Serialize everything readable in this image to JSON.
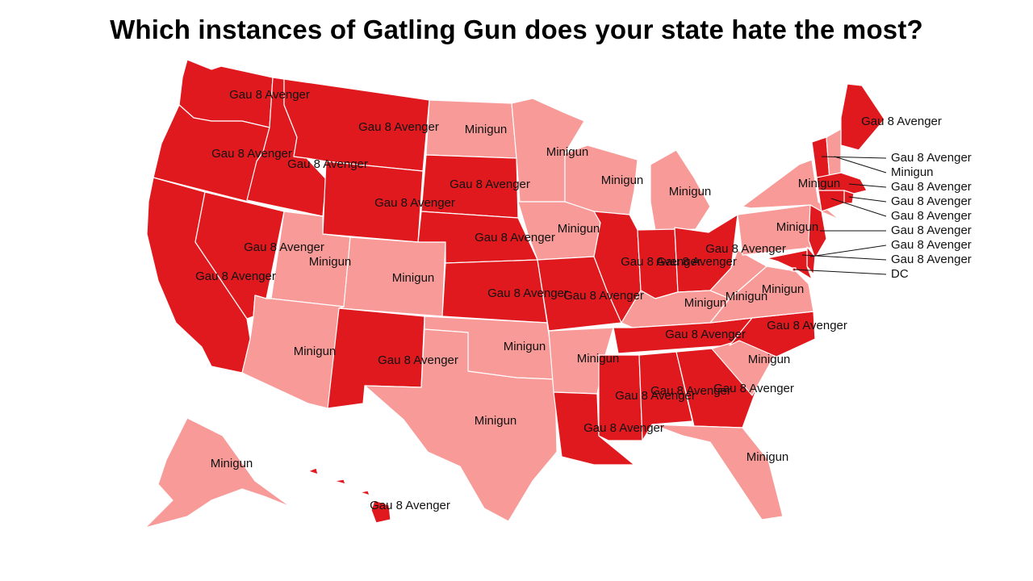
{
  "title": "Which instances of Gatling Gun does your state hate the most?",
  "colors": {
    "Gau 8 Avenger": "#e0191e",
    "Minigun": "#f79a98",
    "border": "#ffffff"
  },
  "states": [
    {
      "id": "WA",
      "value": "Gau 8 Avenger"
    },
    {
      "id": "OR",
      "value": "Gau 8 Avenger"
    },
    {
      "id": "CA",
      "value": "Gau 8 Avenger"
    },
    {
      "id": "ID",
      "value": "Gau 8 Avenger"
    },
    {
      "id": "NV",
      "value": "Gau 8 Avenger"
    },
    {
      "id": "MT",
      "value": "Gau 8 Avenger"
    },
    {
      "id": "WY",
      "value": "Gau 8 Avenger"
    },
    {
      "id": "UT",
      "value": "Minigun"
    },
    {
      "id": "AZ",
      "value": "Minigun"
    },
    {
      "id": "CO",
      "value": "Minigun"
    },
    {
      "id": "NM",
      "value": "Gau 8 Avenger"
    },
    {
      "id": "ND",
      "value": "Minigun"
    },
    {
      "id": "SD",
      "value": "Gau 8 Avenger"
    },
    {
      "id": "NE",
      "value": "Gau 8 Avenger"
    },
    {
      "id": "KS",
      "value": "Gau 8 Avenger"
    },
    {
      "id": "OK",
      "value": "Minigun"
    },
    {
      "id": "TX",
      "value": "Minigun"
    },
    {
      "id": "MN",
      "value": "Minigun"
    },
    {
      "id": "IA",
      "value": "Minigun"
    },
    {
      "id": "MO",
      "value": "Gau 8 Avenger"
    },
    {
      "id": "AR",
      "value": "Minigun"
    },
    {
      "id": "LA",
      "value": "Gau 8 Avenger"
    },
    {
      "id": "WI",
      "value": "Minigun"
    },
    {
      "id": "IL",
      "value": "Gau 8 Avenger"
    },
    {
      "id": "MI",
      "value": "Minigun"
    },
    {
      "id": "IN",
      "value": "Gau 8 Avenger"
    },
    {
      "id": "OH",
      "value": "Gau 8 Avenger"
    },
    {
      "id": "KY",
      "value": "Minigun"
    },
    {
      "id": "TN",
      "value": "Gau 8 Avenger"
    },
    {
      "id": "MS",
      "value": "Gau 8 Avenger"
    },
    {
      "id": "AL",
      "value": "Gau 8 Avenger"
    },
    {
      "id": "GA",
      "value": "Gau 8 Avenger"
    },
    {
      "id": "FL",
      "value": "Minigun"
    },
    {
      "id": "SC",
      "value": "Minigun"
    },
    {
      "id": "NC",
      "value": "Gau 8 Avenger"
    },
    {
      "id": "VA",
      "value": "Minigun"
    },
    {
      "id": "WV",
      "value": "Minigun"
    },
    {
      "id": "PA",
      "value": "Minigun"
    },
    {
      "id": "NY",
      "value": "Minigun"
    },
    {
      "id": "ME",
      "value": "Gau 8 Avenger"
    },
    {
      "id": "VT",
      "value": "Gau 8 Avenger"
    },
    {
      "id": "NH",
      "value": "Minigun"
    },
    {
      "id": "MA",
      "value": "Gau 8 Avenger"
    },
    {
      "id": "RI",
      "value": "Gau 8 Avenger"
    },
    {
      "id": "CT",
      "value": "Gau 8 Avenger"
    },
    {
      "id": "NJ",
      "value": "Gau 8 Avenger"
    },
    {
      "id": "DE",
      "value": "Gau 8 Avenger"
    },
    {
      "id": "MD",
      "value": "Gau 8 Avenger"
    },
    {
      "id": "DC",
      "value": "Gau 8 Avenger"
    },
    {
      "id": "AK",
      "value": "Minigun"
    },
    {
      "id": "HI",
      "value": "Gau 8 Avenger"
    }
  ],
  "map_labels": [
    {
      "state": "WA",
      "text": "Gau 8 Avenger"
    },
    {
      "state": "OR",
      "text": "Gau 8 Avenger"
    },
    {
      "state": "CA",
      "text": "Gau 8 Avenger"
    },
    {
      "state": "ID",
      "text": "Gau 8 Avenger"
    },
    {
      "state": "NV",
      "text": "Gau 8 Avenger"
    },
    {
      "state": "MT",
      "text": "Gau 8 Avenger"
    },
    {
      "state": "WY",
      "text": "Gau 8 Avenger"
    },
    {
      "state": "UT",
      "text": "Minigun"
    },
    {
      "state": "AZ",
      "text": "Minigun"
    },
    {
      "state": "CO",
      "text": "Minigun"
    },
    {
      "state": "NM",
      "text": "Gau 8 Avenger"
    },
    {
      "state": "ND",
      "text": "Minigun"
    },
    {
      "state": "SD",
      "text": "Gau 8 Avenger"
    },
    {
      "state": "NE",
      "text": "Gau 8 Avenger"
    },
    {
      "state": "KS",
      "text": "Gau 8 Avenger"
    },
    {
      "state": "OK",
      "text": "Minigun"
    },
    {
      "state": "TX",
      "text": "Minigun"
    },
    {
      "state": "MN",
      "text": "Minigun"
    },
    {
      "state": "IA",
      "text": "Minigun"
    },
    {
      "state": "MO",
      "text": "Gau 8 Avenger"
    },
    {
      "state": "AR",
      "text": "Minigun"
    },
    {
      "state": "LA",
      "text": "Gau 8 Avenger"
    },
    {
      "state": "WI",
      "text": "Minigun"
    },
    {
      "state": "IL",
      "text": "Gau 8 Avenger"
    },
    {
      "state": "MI",
      "text": "Minigun"
    },
    {
      "state": "IN",
      "text": "Gau 8 Avenger"
    },
    {
      "state": "OH",
      "text": "Gau 8 Avenger"
    },
    {
      "state": "KY",
      "text": "Minigun"
    },
    {
      "state": "TN",
      "text": "Gau 8 Avenger"
    },
    {
      "state": "MS",
      "text": "Gau 8 Avenger"
    },
    {
      "state": "AL",
      "text": "Gau 8 Avenger"
    },
    {
      "state": "GA",
      "text": "Gau 8 Avenger"
    },
    {
      "state": "FL",
      "text": "Minigun"
    },
    {
      "state": "SC",
      "text": "Minigun"
    },
    {
      "state": "NC",
      "text": "Gau 8 Avenger"
    },
    {
      "state": "VA",
      "text": "Minigun"
    },
    {
      "state": "WV",
      "text": "Minigun"
    },
    {
      "state": "PA",
      "text": "Minigun"
    },
    {
      "state": "NY",
      "text": "Minigun"
    },
    {
      "state": "ME",
      "text": "Gau 8 Avenger"
    },
    {
      "state": "AK",
      "text": "Minigun"
    },
    {
      "state": "HI",
      "text": "Gau 8 Avenger"
    }
  ],
  "callouts": [
    {
      "state": "VT",
      "text": "Gau 8 Avenger"
    },
    {
      "state": "NH",
      "text": "Minigun"
    },
    {
      "state": "MA",
      "text": "Gau 8 Avenger"
    },
    {
      "state": "RI",
      "text": "Gau 8 Avenger"
    },
    {
      "state": "CT",
      "text": "Gau 8 Avenger"
    },
    {
      "state": "NJ",
      "text": "Gau 8 Avenger"
    },
    {
      "state": "DE",
      "text": "Gau 8 Avenger"
    },
    {
      "state": "MD",
      "text": "Gau 8 Avenger"
    },
    {
      "state": "DC",
      "text": "DC"
    }
  ]
}
